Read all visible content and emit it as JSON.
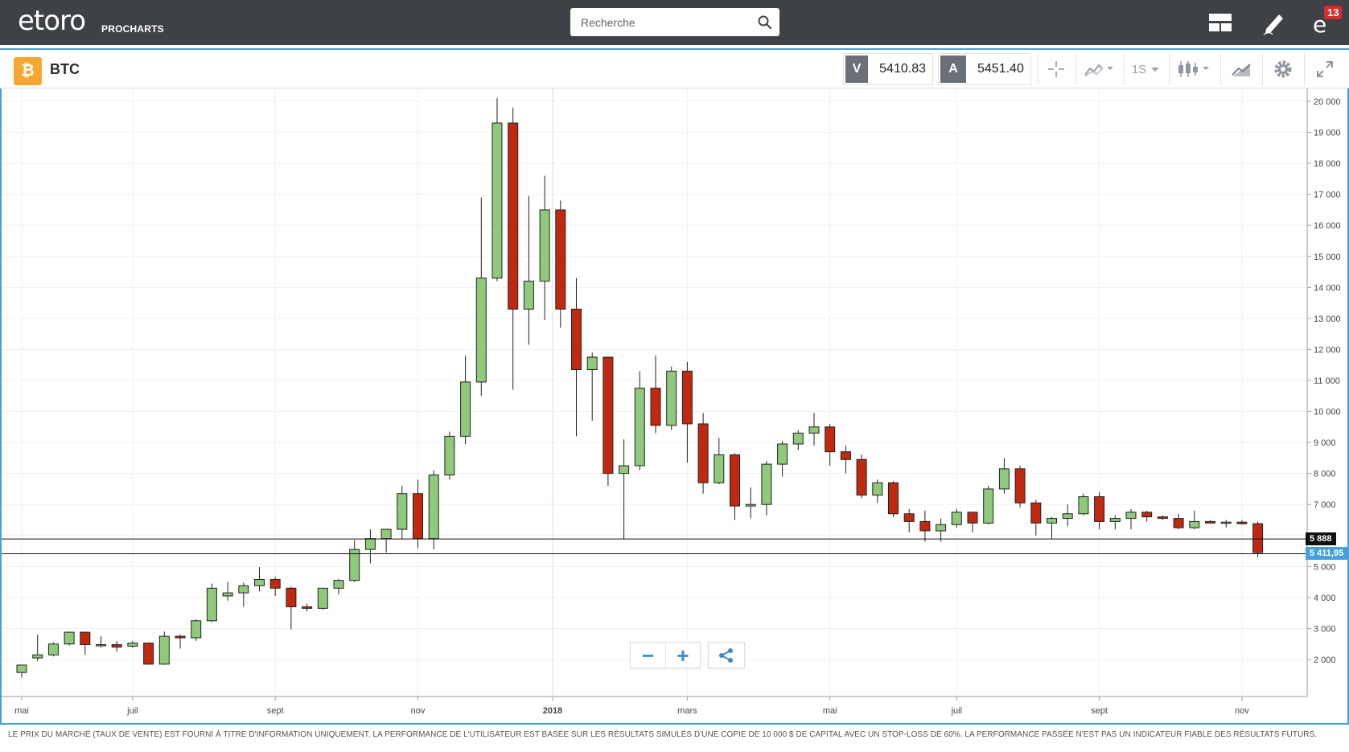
{
  "header": {
    "logo_text": "etoro",
    "logo_sub": "PROCHARTS",
    "search_placeholder": "Recherche",
    "notification_count": "13",
    "icons": [
      "layout-icon",
      "pencil-icon",
      "notifications-icon"
    ]
  },
  "instrument": {
    "symbol_glyph": "₿",
    "name": "BTC",
    "sell_label": "V",
    "sell_price": "5410.83",
    "buy_label": "A",
    "buy_price": "5451.40",
    "interval": "1S",
    "toolbar_icons": [
      "crosshair-icon",
      "compare-icon",
      "interval-dropdown",
      "chart-type-icon",
      "indicators-icon",
      "settings-icon",
      "fullscreen-icon"
    ]
  },
  "chart_data": {
    "type": "candlestick",
    "y_ticks": [
      "20 000",
      "19 000",
      "18 000",
      "17 000",
      "16 000",
      "15 000",
      "14 000",
      "13 000",
      "12 000",
      "11 000",
      "10 000",
      "9 000",
      "8 000",
      "7 000",
      "6 000",
      "5 000",
      "4 000",
      "3 000",
      "2 000"
    ],
    "y_range": [
      1450,
      20350
    ],
    "x_ticks": [
      {
        "label": "mai",
        "index": 0
      },
      {
        "label": "juil",
        "index": 7
      },
      {
        "label": "sept",
        "index": 16
      },
      {
        "label": "nov",
        "index": 25
      },
      {
        "label": "2018",
        "index": 33.5
      },
      {
        "label": "mars",
        "index": 42
      },
      {
        "label": "mai",
        "index": 51
      },
      {
        "label": "juil",
        "index": 59
      },
      {
        "label": "sept",
        "index": 68
      },
      {
        "label": "nov",
        "index": 77
      }
    ],
    "reference_lines": [
      {
        "value": 5888,
        "label": "5 888"
      },
      {
        "value": 5411.95,
        "label": "5 411,95"
      }
    ],
    "candles": [
      {
        "o": 1580,
        "h": 1800,
        "l": 1420,
        "c": 1820
      },
      {
        "o": 2050,
        "h": 2800,
        "l": 1950,
        "c": 2150
      },
      {
        "o": 2150,
        "h": 2550,
        "l": 2100,
        "c": 2500
      },
      {
        "o": 2500,
        "h": 2900,
        "l": 2450,
        "c": 2880
      },
      {
        "o": 2880,
        "h": 2900,
        "l": 2150,
        "c": 2480
      },
      {
        "o": 2450,
        "h": 2750,
        "l": 2380,
        "c": 2480
      },
      {
        "o": 2480,
        "h": 2600,
        "l": 2250,
        "c": 2400
      },
      {
        "o": 2430,
        "h": 2600,
        "l": 2380,
        "c": 2530
      },
      {
        "o": 2530,
        "h": 2550,
        "l": 1830,
        "c": 1850
      },
      {
        "o": 1850,
        "h": 2900,
        "l": 1830,
        "c": 2750
      },
      {
        "o": 2750,
        "h": 2800,
        "l": 2350,
        "c": 2700
      },
      {
        "o": 2700,
        "h": 3300,
        "l": 2600,
        "c": 3250
      },
      {
        "o": 3250,
        "h": 4450,
        "l": 3200,
        "c": 4300
      },
      {
        "o": 4050,
        "h": 4500,
        "l": 3900,
        "c": 4150
      },
      {
        "o": 4150,
        "h": 4480,
        "l": 3700,
        "c": 4380
      },
      {
        "o": 4380,
        "h": 4980,
        "l": 4200,
        "c": 4580
      },
      {
        "o": 4580,
        "h": 4650,
        "l": 4050,
        "c": 4300
      },
      {
        "o": 4300,
        "h": 4350,
        "l": 2970,
        "c": 3700
      },
      {
        "o": 3700,
        "h": 3800,
        "l": 3550,
        "c": 3650
      },
      {
        "o": 3650,
        "h": 4300,
        "l": 3600,
        "c": 4300
      },
      {
        "o": 4300,
        "h": 4600,
        "l": 4100,
        "c": 4550
      },
      {
        "o": 4550,
        "h": 5850,
        "l": 4500,
        "c": 5550
      },
      {
        "o": 5550,
        "h": 6200,
        "l": 5100,
        "c": 5900
      },
      {
        "o": 5900,
        "h": 6150,
        "l": 5450,
        "c": 6200
      },
      {
        "o": 6200,
        "h": 7600,
        "l": 5900,
        "c": 7350
      },
      {
        "o": 7350,
        "h": 7800,
        "l": 5600,
        "c": 5900
      },
      {
        "o": 5900,
        "h": 8100,
        "l": 5550,
        "c": 7950
      },
      {
        "o": 7950,
        "h": 9350,
        "l": 7800,
        "c": 9200
      },
      {
        "o": 9200,
        "h": 11800,
        "l": 8950,
        "c": 10950
      },
      {
        "o": 10950,
        "h": 16900,
        "l": 10500,
        "c": 14300
      },
      {
        "o": 14300,
        "h": 20100,
        "l": 14200,
        "c": 19300
      },
      {
        "o": 19300,
        "h": 19800,
        "l": 10700,
        "c": 13300
      },
      {
        "o": 13300,
        "h": 16950,
        "l": 12150,
        "c": 14200
      },
      {
        "o": 14200,
        "h": 17600,
        "l": 12950,
        "c": 16500
      },
      {
        "o": 16500,
        "h": 16800,
        "l": 12700,
        "c": 13300
      },
      {
        "o": 13300,
        "h": 14300,
        "l": 9200,
        "c": 11350
      },
      {
        "o": 11350,
        "h": 11900,
        "l": 9700,
        "c": 11750
      },
      {
        "o": 11750,
        "h": 11750,
        "l": 7600,
        "c": 8000
      },
      {
        "o": 8000,
        "h": 9100,
        "l": 5880,
        "c": 8250
      },
      {
        "o": 8250,
        "h": 11300,
        "l": 8100,
        "c": 10750
      },
      {
        "o": 10750,
        "h": 11800,
        "l": 9300,
        "c": 9550
      },
      {
        "o": 9550,
        "h": 11450,
        "l": 9400,
        "c": 11300
      },
      {
        "o": 11300,
        "h": 11600,
        "l": 8350,
        "c": 9600
      },
      {
        "o": 9600,
        "h": 9950,
        "l": 7350,
        "c": 7700
      },
      {
        "o": 7700,
        "h": 9150,
        "l": 7650,
        "c": 8600
      },
      {
        "o": 8600,
        "h": 8650,
        "l": 6500,
        "c": 6950
      },
      {
        "o": 6950,
        "h": 7550,
        "l": 6550,
        "c": 7000
      },
      {
        "o": 7000,
        "h": 8400,
        "l": 6650,
        "c": 8300
      },
      {
        "o": 8300,
        "h": 9050,
        "l": 7900,
        "c": 8950
      },
      {
        "o": 8950,
        "h": 9400,
        "l": 8750,
        "c": 9300
      },
      {
        "o": 9300,
        "h": 9950,
        "l": 8900,
        "c": 9500
      },
      {
        "o": 9500,
        "h": 9600,
        "l": 8250,
        "c": 8700
      },
      {
        "o": 8700,
        "h": 8900,
        "l": 8000,
        "c": 8450
      },
      {
        "o": 8450,
        "h": 8600,
        "l": 7200,
        "c": 7300
      },
      {
        "o": 7300,
        "h": 7800,
        "l": 7050,
        "c": 7700
      },
      {
        "o": 7700,
        "h": 7750,
        "l": 6600,
        "c": 6700
      },
      {
        "o": 6700,
        "h": 6850,
        "l": 6100,
        "c": 6450
      },
      {
        "o": 6450,
        "h": 6800,
        "l": 5800,
        "c": 6150
      },
      {
        "o": 6150,
        "h": 6550,
        "l": 5800,
        "c": 6350
      },
      {
        "o": 6350,
        "h": 6850,
        "l": 6250,
        "c": 6750
      },
      {
        "o": 6750,
        "h": 6750,
        "l": 6100,
        "c": 6400
      },
      {
        "o": 6400,
        "h": 7600,
        "l": 6350,
        "c": 7500
      },
      {
        "o": 7500,
        "h": 8500,
        "l": 7350,
        "c": 8150
      },
      {
        "o": 8150,
        "h": 8250,
        "l": 6900,
        "c": 7050
      },
      {
        "o": 7050,
        "h": 7150,
        "l": 6000,
        "c": 6400
      },
      {
        "o": 6400,
        "h": 6600,
        "l": 5900,
        "c": 6550
      },
      {
        "o": 6550,
        "h": 7000,
        "l": 6300,
        "c": 6700
      },
      {
        "o": 6700,
        "h": 7350,
        "l": 6650,
        "c": 7250
      },
      {
        "o": 7250,
        "h": 7400,
        "l": 6200,
        "c": 6450
      },
      {
        "o": 6450,
        "h": 6650,
        "l": 6200,
        "c": 6550
      },
      {
        "o": 6550,
        "h": 6850,
        "l": 6200,
        "c": 6750
      },
      {
        "o": 6750,
        "h": 6800,
        "l": 6450,
        "c": 6600
      },
      {
        "o": 6600,
        "h": 6650,
        "l": 6500,
        "c": 6550
      },
      {
        "o": 6550,
        "h": 6700,
        "l": 6200,
        "c": 6250
      },
      {
        "o": 6250,
        "h": 6800,
        "l": 6200,
        "c": 6450
      },
      {
        "o": 6450,
        "h": 6500,
        "l": 6400,
        "c": 6400
      },
      {
        "o": 6400,
        "h": 6500,
        "l": 6250,
        "c": 6430
      },
      {
        "o": 6430,
        "h": 6500,
        "l": 6350,
        "c": 6380
      },
      {
        "o": 6380,
        "h": 6450,
        "l": 5300,
        "c": 5450
      }
    ],
    "up_color": "#8ec97c",
    "down_color": "#c0290f"
  },
  "zoom": {
    "minus": "−",
    "plus": "+",
    "share_icon": "share-icon"
  },
  "disclaimer": "LE PRIX DU MARCHÉ (TAUX DE VENTE) EST FOURNI À TITRE D'INFORMATION UNIQUEMENT. LA PERFORMANCE DE L'UTILISATEUR EST BASÉE SUR LES RÉSULTATS SIMULÉS D'UNE COPIE DE 10 000 $ DE CAPITAL AVEC UN STOP-LOSS DE 60%. LA PERFORMANCE PASSÉE N'EST PAS UN INDICATEUR FIABLE DES RÉSULTATS FUTURS.",
  "colors": {
    "topbar": "#3e4145",
    "accent": "#47a0d9",
    "up": "#8ec97c",
    "down": "#c0290f"
  }
}
